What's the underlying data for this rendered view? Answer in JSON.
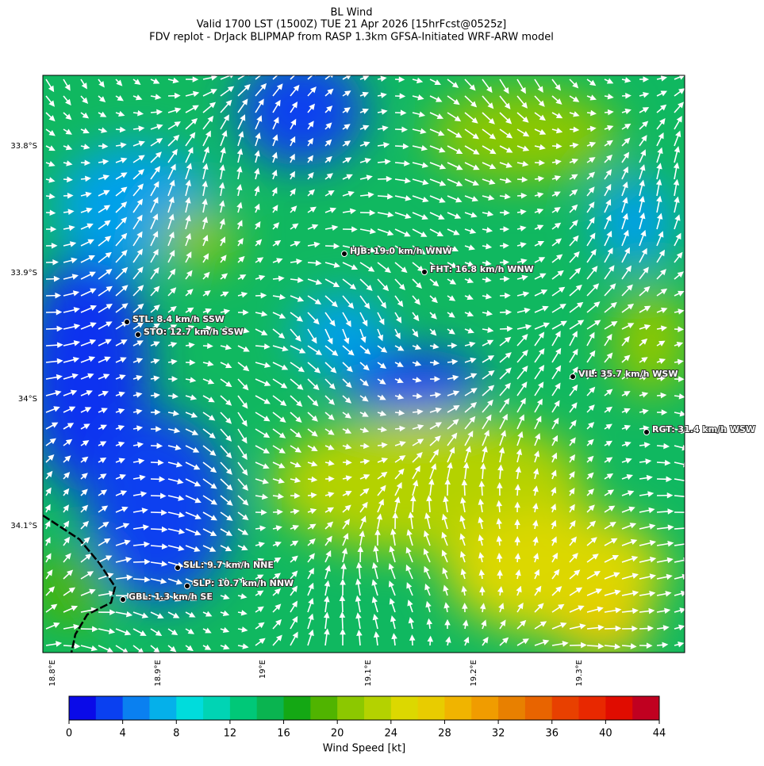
{
  "title": "BL Wind",
  "subtitle": "Valid 1700 LST (1500Z) TUE 21 Apr 2026 [15hrFcst@0525z]",
  "source": "FDV replot - DrJack BLIPMAP from RASP 1.3km GFSA-Initiated WRF-ARW model",
  "lat_labels": [
    "33.8°S",
    "33.9°S",
    "34°S",
    "34.1°S"
  ],
  "lon_labels": [
    "18.8°E",
    "18.9°E",
    "19°E",
    "19.1°E",
    "19.2°E",
    "19.3°E"
  ],
  "stations": [
    "HJB: 19.0 km/h WNW",
    "FHT: 16.8 km/h WNW",
    "STL: 8.4 km/h SSW",
    "STO: 12.7 km/h SSW",
    "VIL: 35.7 km/h WSW",
    "RGT: 31.4 km/h WSW",
    "SLL: 9.7 km/h NNE",
    "SLP: 10.7 km/h NNW",
    "GBL: 1.3 km/h SE"
  ],
  "colorbar": {
    "label": "Wind Speed [kt]",
    "lim": [
      0,
      44
    ],
    "ticks": [
      0,
      4,
      8,
      12,
      16,
      20,
      24,
      28,
      32,
      36,
      40,
      44
    ],
    "colors": [
      "#0a0ae8",
      "#0a40f0",
      "#0a80f0",
      "#05b0ea",
      "#00dcdc",
      "#00d4b4",
      "#00c878",
      "#0ab450",
      "#14a814",
      "#50b400",
      "#8cc800",
      "#b4d200",
      "#dcd800",
      "#e8cc00",
      "#f0b400",
      "#f09c00",
      "#e88000",
      "#e86400",
      "#e84000",
      "#e82800",
      "#e00c00",
      "#c00020"
    ]
  }
}
